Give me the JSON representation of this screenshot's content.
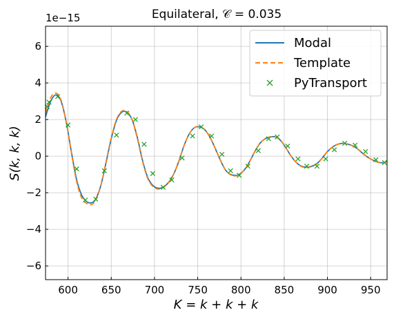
{
  "chart_data": {
    "type": "line",
    "title": "Equilateral, 𝒞 = 0.035",
    "xlabel": "K = k + k + k",
    "ylabel": "S(k, k, k)",
    "y_offset_text": "1e−15",
    "xlim": [
      574,
      969
    ],
    "ylim": [
      -6.75,
      7.1
    ],
    "xticks": [
      600,
      650,
      700,
      750,
      800,
      850,
      900,
      950
    ],
    "yticks": [
      -6,
      -4,
      -2,
      0,
      2,
      4,
      6
    ],
    "xtick_labels": [
      "600",
      "650",
      "700",
      "750",
      "800",
      "850",
      "900",
      "950"
    ],
    "ytick_labels": [
      "−6",
      "−4",
      "−2",
      "0",
      "2",
      "4",
      "6"
    ],
    "grid": true,
    "legend_position": "top-right",
    "series": [
      {
        "name": "Modal",
        "style": "solid",
        "color": "#1f77b4",
        "x": [
          574,
          580,
          586,
          592,
          598,
          604,
          610,
          616,
          622,
          627,
          632,
          638,
          644,
          650,
          656,
          662,
          668,
          674,
          680,
          686,
          692,
          698,
          704,
          710,
          716,
          722,
          728,
          734,
          740,
          746,
          752,
          758,
          764,
          770,
          776,
          782,
          788,
          794,
          798,
          804,
          810,
          816,
          822,
          828,
          834,
          840,
          846,
          852,
          858,
          864,
          870,
          876,
          882,
          888,
          894,
          900,
          906,
          912,
          918,
          924,
          930,
          936,
          942,
          948,
          954,
          960,
          966,
          969
        ],
        "y": [
          2.15,
          3.0,
          3.35,
          3.0,
          1.85,
          0.2,
          -1.3,
          -2.15,
          -2.5,
          -2.55,
          -2.35,
          -1.6,
          -0.35,
          0.95,
          1.95,
          2.4,
          2.4,
          2.0,
          1.05,
          -0.2,
          -1.15,
          -1.6,
          -1.75,
          -1.7,
          -1.45,
          -1.0,
          -0.3,
          0.55,
          1.2,
          1.55,
          1.6,
          1.45,
          1.05,
          0.45,
          -0.2,
          -0.75,
          -1.0,
          -1.05,
          -1.0,
          -0.75,
          -0.3,
          0.25,
          0.7,
          0.95,
          1.05,
          1.05,
          0.85,
          0.45,
          0.0,
          -0.35,
          -0.55,
          -0.6,
          -0.55,
          -0.4,
          -0.1,
          0.25,
          0.5,
          0.65,
          0.7,
          0.65,
          0.55,
          0.35,
          0.1,
          -0.1,
          -0.25,
          -0.35,
          -0.35,
          -0.3
        ]
      },
      {
        "name": "Template",
        "style": "dashed",
        "color": "#ff7f0e",
        "x": [
          574,
          580,
          586,
          592,
          598,
          604,
          610,
          616,
          622,
          627,
          632,
          638,
          644,
          650,
          656,
          662,
          668,
          674,
          680,
          686,
          692,
          698,
          704,
          710,
          716,
          722,
          728,
          734,
          740,
          746,
          752,
          758,
          764,
          770,
          776,
          782,
          788,
          794,
          798,
          804,
          810,
          816,
          822,
          828,
          834,
          840,
          846,
          852,
          858,
          864,
          870,
          876,
          882,
          888,
          894,
          900,
          906,
          912,
          918,
          924,
          930,
          936,
          942,
          948,
          954,
          960,
          966,
          969
        ],
        "y": [
          2.35,
          3.2,
          3.45,
          3.05,
          1.85,
          0.15,
          -1.4,
          -2.3,
          -2.6,
          -2.65,
          -2.4,
          -1.6,
          -0.3,
          1.0,
          2.0,
          2.45,
          2.45,
          2.0,
          1.0,
          -0.25,
          -1.2,
          -1.65,
          -1.8,
          -1.72,
          -1.45,
          -1.0,
          -0.3,
          0.55,
          1.2,
          1.55,
          1.62,
          1.45,
          1.05,
          0.45,
          -0.2,
          -0.75,
          -1.02,
          -1.08,
          -1.0,
          -0.75,
          -0.3,
          0.25,
          0.7,
          0.95,
          1.05,
          1.05,
          0.85,
          0.45,
          0.0,
          -0.35,
          -0.57,
          -0.62,
          -0.57,
          -0.42,
          -0.1,
          0.25,
          0.5,
          0.65,
          0.7,
          0.65,
          0.55,
          0.35,
          0.1,
          -0.1,
          -0.25,
          -0.35,
          -0.35,
          -0.3
        ]
      },
      {
        "name": "PyTransport",
        "style": "marker-x",
        "color": "#2ca02c",
        "x": [
          576,
          578,
          588,
          600,
          610,
          620,
          632,
          642,
          656,
          668,
          678,
          688,
          698,
          710,
          720,
          732,
          744,
          754,
          766,
          778,
          788,
          798,
          808,
          820,
          832,
          842,
          854,
          866,
          876,
          888,
          898,
          908,
          920,
          932,
          944,
          956,
          966
        ],
        "y": [
          2.7,
          2.95,
          3.25,
          1.7,
          -0.7,
          -2.4,
          -2.35,
          -0.8,
          1.15,
          2.35,
          2.0,
          0.65,
          -0.95,
          -1.7,
          -1.3,
          -0.1,
          1.1,
          1.6,
          1.1,
          0.1,
          -0.8,
          -1.05,
          -0.55,
          0.3,
          0.95,
          1.05,
          0.55,
          -0.15,
          -0.55,
          -0.55,
          -0.15,
          0.35,
          0.7,
          0.6,
          0.25,
          -0.2,
          -0.35
        ]
      }
    ]
  }
}
